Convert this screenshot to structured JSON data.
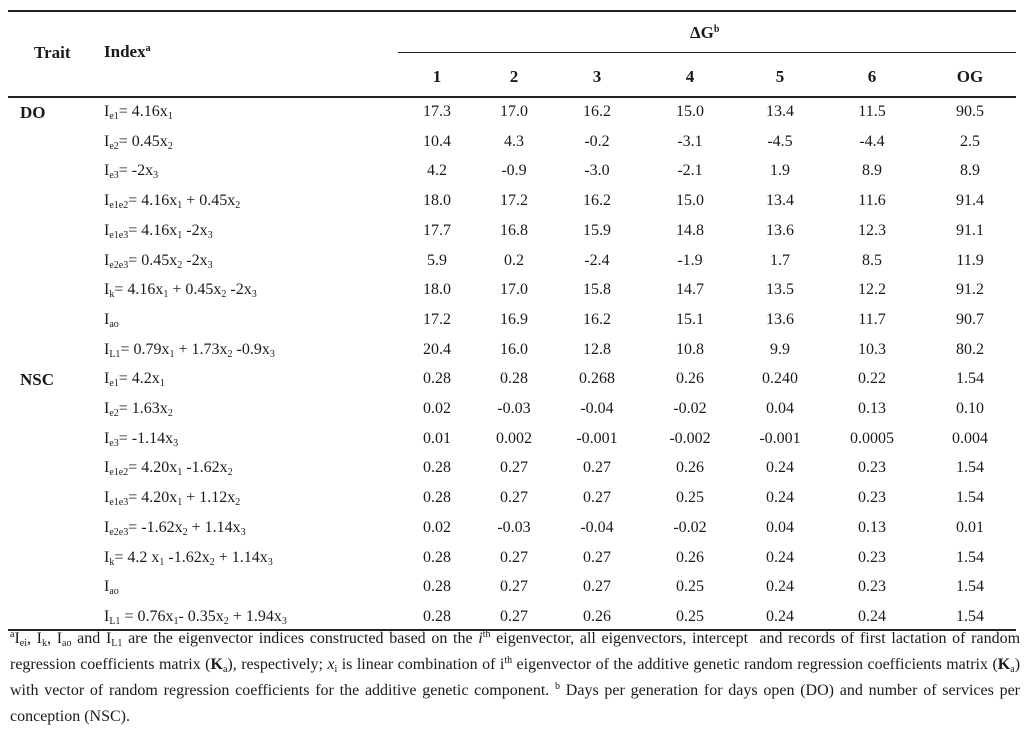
{
  "headers": {
    "trait": "Trait",
    "index": "Index",
    "index_sup": "a",
    "delta_g": "ΔG",
    "delta_g_sup": "b",
    "cols": [
      "1",
      "2",
      "3",
      "4",
      "5",
      "6",
      "OG"
    ]
  },
  "groups": [
    {
      "trait": "DO",
      "rows": [
        {
          "values": [
            "17.3",
            "17.0",
            "16.2",
            "15.0",
            "13.4",
            "11.5",
            "90.5"
          ]
        },
        {
          "values": [
            "10.4",
            "4.3",
            "-0.2",
            "-3.1",
            "-4.5",
            "-4.4",
            "2.5"
          ]
        },
        {
          "values": [
            "4.2",
            "-0.9",
            "-3.0",
            "-2.1",
            "1.9",
            "8.9",
            "8.9"
          ]
        },
        {
          "values": [
            "18.0",
            "17.2",
            "16.2",
            "15.0",
            "13.4",
            "11.6",
            "91.4"
          ]
        },
        {
          "values": [
            "17.7",
            "16.8",
            "15.9",
            "14.8",
            "13.6",
            "12.3",
            "91.1"
          ]
        },
        {
          "values": [
            "5.9",
            "0.2",
            "-2.4",
            "-1.9",
            "1.7",
            "8.5",
            "11.9"
          ]
        },
        {
          "values": [
            "18.0",
            "17.0",
            "15.8",
            "14.7",
            "13.5",
            "12.2",
            "91.2"
          ]
        },
        {
          "values": [
            "17.2",
            "16.9",
            "16.2",
            "15.1",
            "13.6",
            "11.7",
            "90.7"
          ]
        },
        {
          "values": [
            "20.4",
            "16.0",
            "12.8",
            "10.8",
            "9.9",
            "10.3",
            "80.2"
          ]
        }
      ]
    },
    {
      "trait": "NSC",
      "rows": [
        {
          "values": [
            "0.28",
            "0.28",
            "0.268",
            "0.26",
            "0.240",
            "0.22",
            "1.54"
          ]
        },
        {
          "values": [
            "0.02",
            "-0.03",
            "-0.04",
            "-0.02",
            "0.04",
            "0.13",
            "0.10"
          ]
        },
        {
          "values": [
            "0.01",
            "0.002",
            "-0.001",
            "-0.002",
            "-0.001",
            "0.0005",
            "0.004"
          ]
        },
        {
          "values": [
            "0.28",
            "0.27",
            "0.27",
            "0.26",
            "0.24",
            "0.23",
            "1.54"
          ]
        },
        {
          "values": [
            "0.28",
            "0.27",
            "0.27",
            "0.25",
            "0.24",
            "0.23",
            "1.54"
          ]
        },
        {
          "values": [
            "0.02",
            "-0.03",
            "-0.04",
            "-0.02",
            "0.04",
            "0.13",
            "0.01"
          ]
        },
        {
          "values": [
            "0.28",
            "0.27",
            "0.27",
            "0.26",
            "0.24",
            "0.23",
            "1.54"
          ]
        },
        {
          "values": [
            "0.28",
            "0.27",
            "0.27",
            "0.25",
            "0.24",
            "0.23",
            "1.54"
          ]
        },
        {
          "values": [
            "0.28",
            "0.27",
            "0.26",
            "0.25",
            "0.24",
            "0.24",
            "1.54"
          ]
        }
      ]
    }
  ],
  "index_labels": {
    "do": [
      "I<sub>e1</sub>= 4.16x<sub>1</sub>",
      "I<sub>e2</sub>= 0.45x<sub>2</sub>",
      "I<sub>e3</sub>= -2x<sub>3</sub>",
      "I<sub>e1e2</sub>= 4.16x<sub>1</sub> + 0.45x<sub>2</sub>",
      "I<sub>e1e3</sub>= 4.16x<sub>1</sub> -2x<sub>3</sub>",
      "I<sub>e2e3</sub>= 0.45x<sub>2</sub> -2x<sub>3</sub>",
      "I<sub>k</sub>= 4.16x<sub>1</sub> + 0.45x<sub>2</sub> -2x<sub>3</sub>",
      "I<sub>ao</sub>",
      "I<sub>L1</sub>= 0.79x<sub>1</sub> + 1.73x<sub>2</sub> -0.9x<sub>3</sub>"
    ],
    "nsc": [
      "I<sub>e1</sub>= 4.2x<sub>1</sub>",
      "I<sub>e2</sub>= 1.63x<sub>2</sub>",
      "I<sub>e3</sub>= -1.14x<sub>3</sub>",
      "I<sub>e1e2</sub>= 4.20x<sub>1</sub> -1.62x<sub>2</sub>",
      "I<sub>e1e3</sub>= 4.20x<sub>1</sub> + 1.12x<sub>2</sub>",
      "I<sub>e2e3</sub>= -1.62x<sub>2</sub> + 1.14x<sub>3</sub>",
      "I<sub>k</sub>= 4.2 x<sub>1</sub> -1.62x<sub>2</sub> + 1.14x<sub>3</sub>",
      "I<sub>ao</sub>",
      "I<sub>L1</sub> = 0.76x<sub>1</sub>- 0.35x<sub>2</sub> + 1.94x<sub>3</sub>"
    ]
  },
  "footnote_html": "<sup>a</sup>I<sub>ei</sub>, I<sub>k</sub>, I<sub>ao</sub> and I<sub>L1</sub> are the eigenvector indices constructed based on the <i>i</i><sup>th</sup> eigenvector, all eigenvectors, intercept&nbsp; and records of first lactation of random regression coefficients matrix (<b>K</b><sub>a</sub>), respectively; <i>x</i><sub>i</sub> is linear combination of i<sup>th</sup> eigenvector of the additive genetic random regression coefficients matrix (<b>K</b><sub>a</sub>) with vector of random regression coefficients for the additive genetic component. <sup>b</sup> Days per generation for days open (DO) and number of services per conception (NSC)."
}
